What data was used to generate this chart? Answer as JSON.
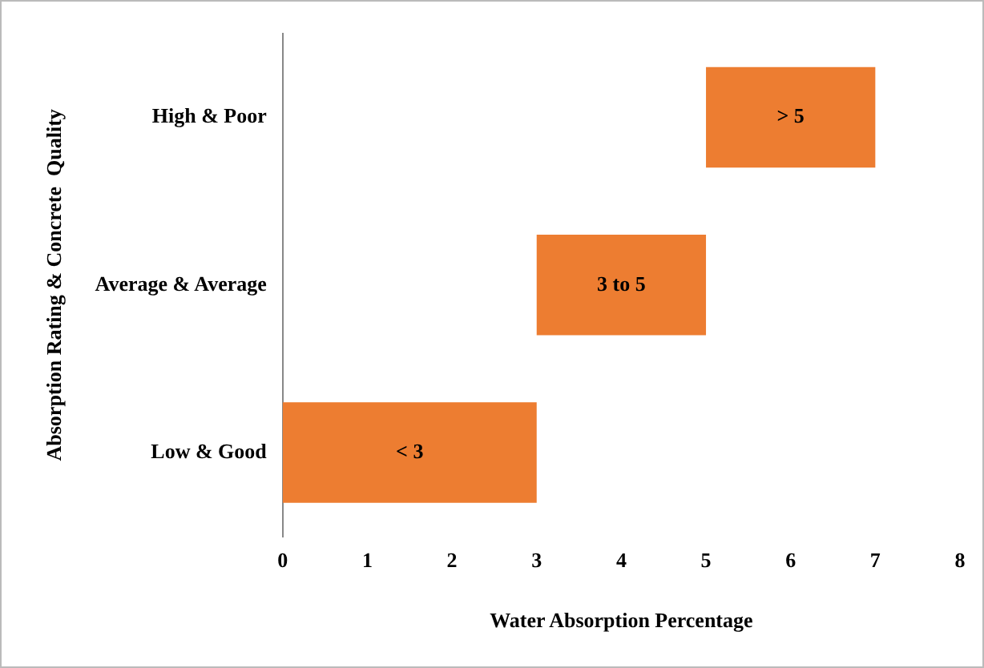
{
  "chart_data": {
    "type": "bar",
    "orientation": "horizontal",
    "xlabel": "Water Absorption Percentage",
    "ylabel": "Absorption Rating & Concrete  Quality",
    "categories": [
      "High & Poor",
      "Average & Average",
      "Low & Good"
    ],
    "values": [
      2,
      2,
      3
    ],
    "base": [
      5,
      3,
      0
    ],
    "color": "#ed7d31",
    "annotations": [
      "> 5",
      "3 to 5",
      "< 3"
    ],
    "xlim": [
      0,
      8
    ],
    "xticks": [
      0,
      1,
      2,
      3,
      4,
      5,
      6,
      7,
      8
    ],
    "grid": false,
    "legend": false
  }
}
